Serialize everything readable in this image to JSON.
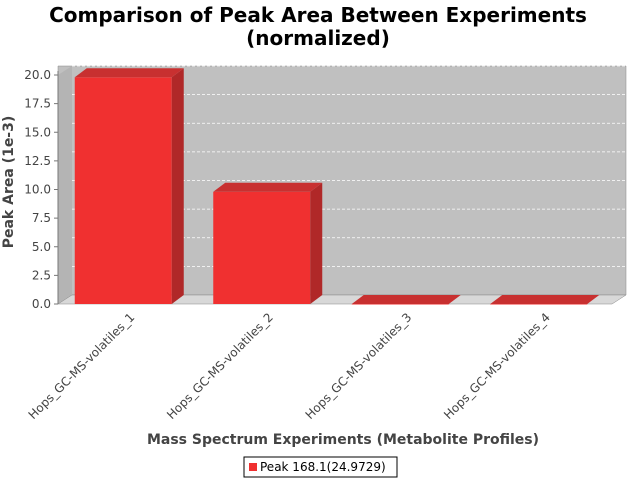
{
  "chart_data": {
    "type": "bar",
    "title": "Comparison of Peak Area Between Experiments",
    "subtitle": "(normalized)",
    "xlabel": "Mass Spectrum Experiments (Metabolite Profiles)",
    "ylabel": "Peak Area (1e-3)",
    "categories": [
      "Hops_GC-MS-volatiles_1",
      "Hops_GC-MS-volatiles_2",
      "Hops_GC-MS-volatiles_3",
      "Hops_GC-MS-volatiles_4"
    ],
    "series": [
      {
        "name": "Peak 168.1(24.9729)",
        "values": [
          19.8,
          9.8,
          0.0,
          0.0
        ],
        "color": "#f03030"
      }
    ],
    "yticks": [
      "0.0",
      "2.5",
      "5.0",
      "7.5",
      "10.0",
      "12.5",
      "15.0",
      "17.5",
      "20.0"
    ],
    "ylim": [
      0,
      20
    ],
    "grid": true,
    "legend": "bottom-center",
    "plot_background": "#c0c0c0",
    "floor_color": "#d8d8d8"
  }
}
